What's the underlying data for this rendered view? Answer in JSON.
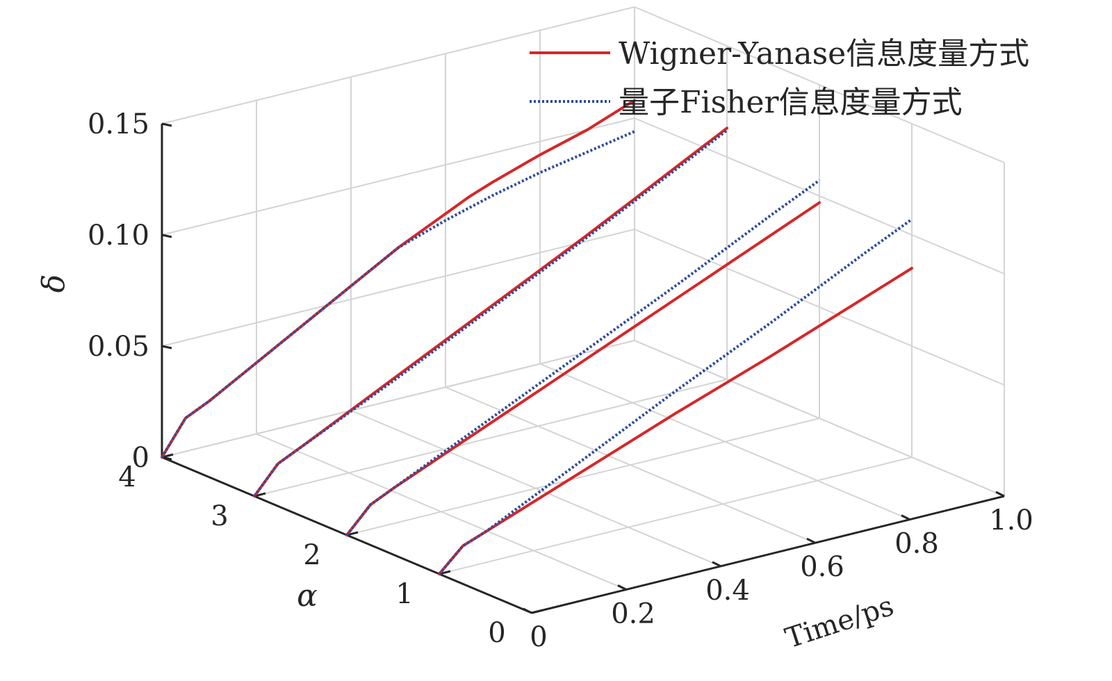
{
  "chart_data": {
    "type": "line",
    "view": "3d",
    "title": "",
    "xlabel": "Time/ps",
    "ylabel": "α",
    "zlabel": "δ",
    "xlim": [
      0,
      1.0
    ],
    "ylim": [
      0,
      4
    ],
    "zlim": [
      0,
      0.15
    ],
    "xticks": [
      0,
      0.2,
      0.4,
      0.6,
      0.8,
      1.0
    ],
    "xticklabels": [
      "0",
      "0.2",
      "0.4",
      "0.6",
      "0.8",
      "1.0"
    ],
    "yticks": [
      0,
      1,
      2,
      3,
      4
    ],
    "yticklabels": [
      "0",
      "1",
      "2",
      "3",
      "4"
    ],
    "zticks": [
      0,
      0.05,
      0.1,
      0.15
    ],
    "zticklabels": [
      "0",
      "0.05",
      "0.10",
      "0.15"
    ],
    "grid": true,
    "legend": "top-right",
    "colors": {
      "wy": "#d62728",
      "qf": "#2c4a9e"
    },
    "series": [
      {
        "name": "Wigner-Yanase信息度量方式",
        "alpha": 4,
        "style": "solid",
        "colorKey": "wy",
        "x": [
          0,
          0.05,
          0.1,
          0.2,
          0.3,
          0.4,
          0.5,
          0.6,
          0.65,
          0.7,
          0.8,
          0.9,
          1.0
        ],
        "y": [
          0,
          0.015,
          0.02,
          0.032,
          0.044,
          0.056,
          0.068,
          0.078,
          0.083,
          0.087,
          0.094,
          0.1,
          0.108
        ]
      },
      {
        "name": "量子Fisher信息度量方式",
        "alpha": 4,
        "style": "dotted",
        "colorKey": "qf",
        "x": [
          0,
          0.05,
          0.1,
          0.2,
          0.3,
          0.4,
          0.5,
          0.6,
          0.7,
          0.8,
          0.9,
          1.0
        ],
        "y": [
          0,
          0.015,
          0.02,
          0.032,
          0.044,
          0.056,
          0.068,
          0.075,
          0.081,
          0.086,
          0.09,
          0.094
        ]
      },
      {
        "alpha": 3,
        "style": "solid",
        "colorKey": "wy",
        "x": [
          0,
          0.05,
          0.1,
          0.3,
          0.5,
          0.7,
          0.9,
          1.0
        ],
        "y": [
          0,
          0.012,
          0.017,
          0.038,
          0.059,
          0.08,
          0.102,
          0.113
        ]
      },
      {
        "alpha": 3,
        "style": "dotted",
        "colorKey": "qf",
        "x": [
          0,
          0.05,
          0.1,
          0.3,
          0.5,
          0.7,
          0.9,
          1.0
        ],
        "y": [
          0,
          0.012,
          0.017,
          0.037,
          0.058,
          0.079,
          0.101,
          0.112
        ]
      },
      {
        "alpha": 2,
        "style": "solid",
        "colorKey": "wy",
        "x": [
          0,
          0.05,
          0.1,
          0.3,
          0.5,
          0.7,
          0.9,
          1.0
        ],
        "y": [
          0,
          0.011,
          0.016,
          0.034,
          0.052,
          0.07,
          0.088,
          0.097
        ]
      },
      {
        "alpha": 2,
        "style": "dotted",
        "colorKey": "qf",
        "x": [
          0,
          0.05,
          0.1,
          0.3,
          0.5,
          0.7,
          0.9,
          1.0
        ],
        "y": [
          0,
          0.011,
          0.016,
          0.036,
          0.056,
          0.076,
          0.097,
          0.107
        ]
      },
      {
        "alpha": 1,
        "style": "solid",
        "colorKey": "wy",
        "x": [
          0,
          0.05,
          0.1,
          0.3,
          0.5,
          0.7,
          0.9,
          1.0
        ],
        "y": [
          0,
          0.01,
          0.014,
          0.03,
          0.046,
          0.061,
          0.077,
          0.085
        ]
      },
      {
        "alpha": 1,
        "style": "dotted",
        "colorKey": "qf",
        "x": [
          0,
          0.05,
          0.1,
          0.3,
          0.5,
          0.7,
          0.9,
          1.0
        ],
        "y": [
          0,
          0.01,
          0.014,
          0.035,
          0.056,
          0.076,
          0.097,
          0.107
        ]
      }
    ]
  }
}
